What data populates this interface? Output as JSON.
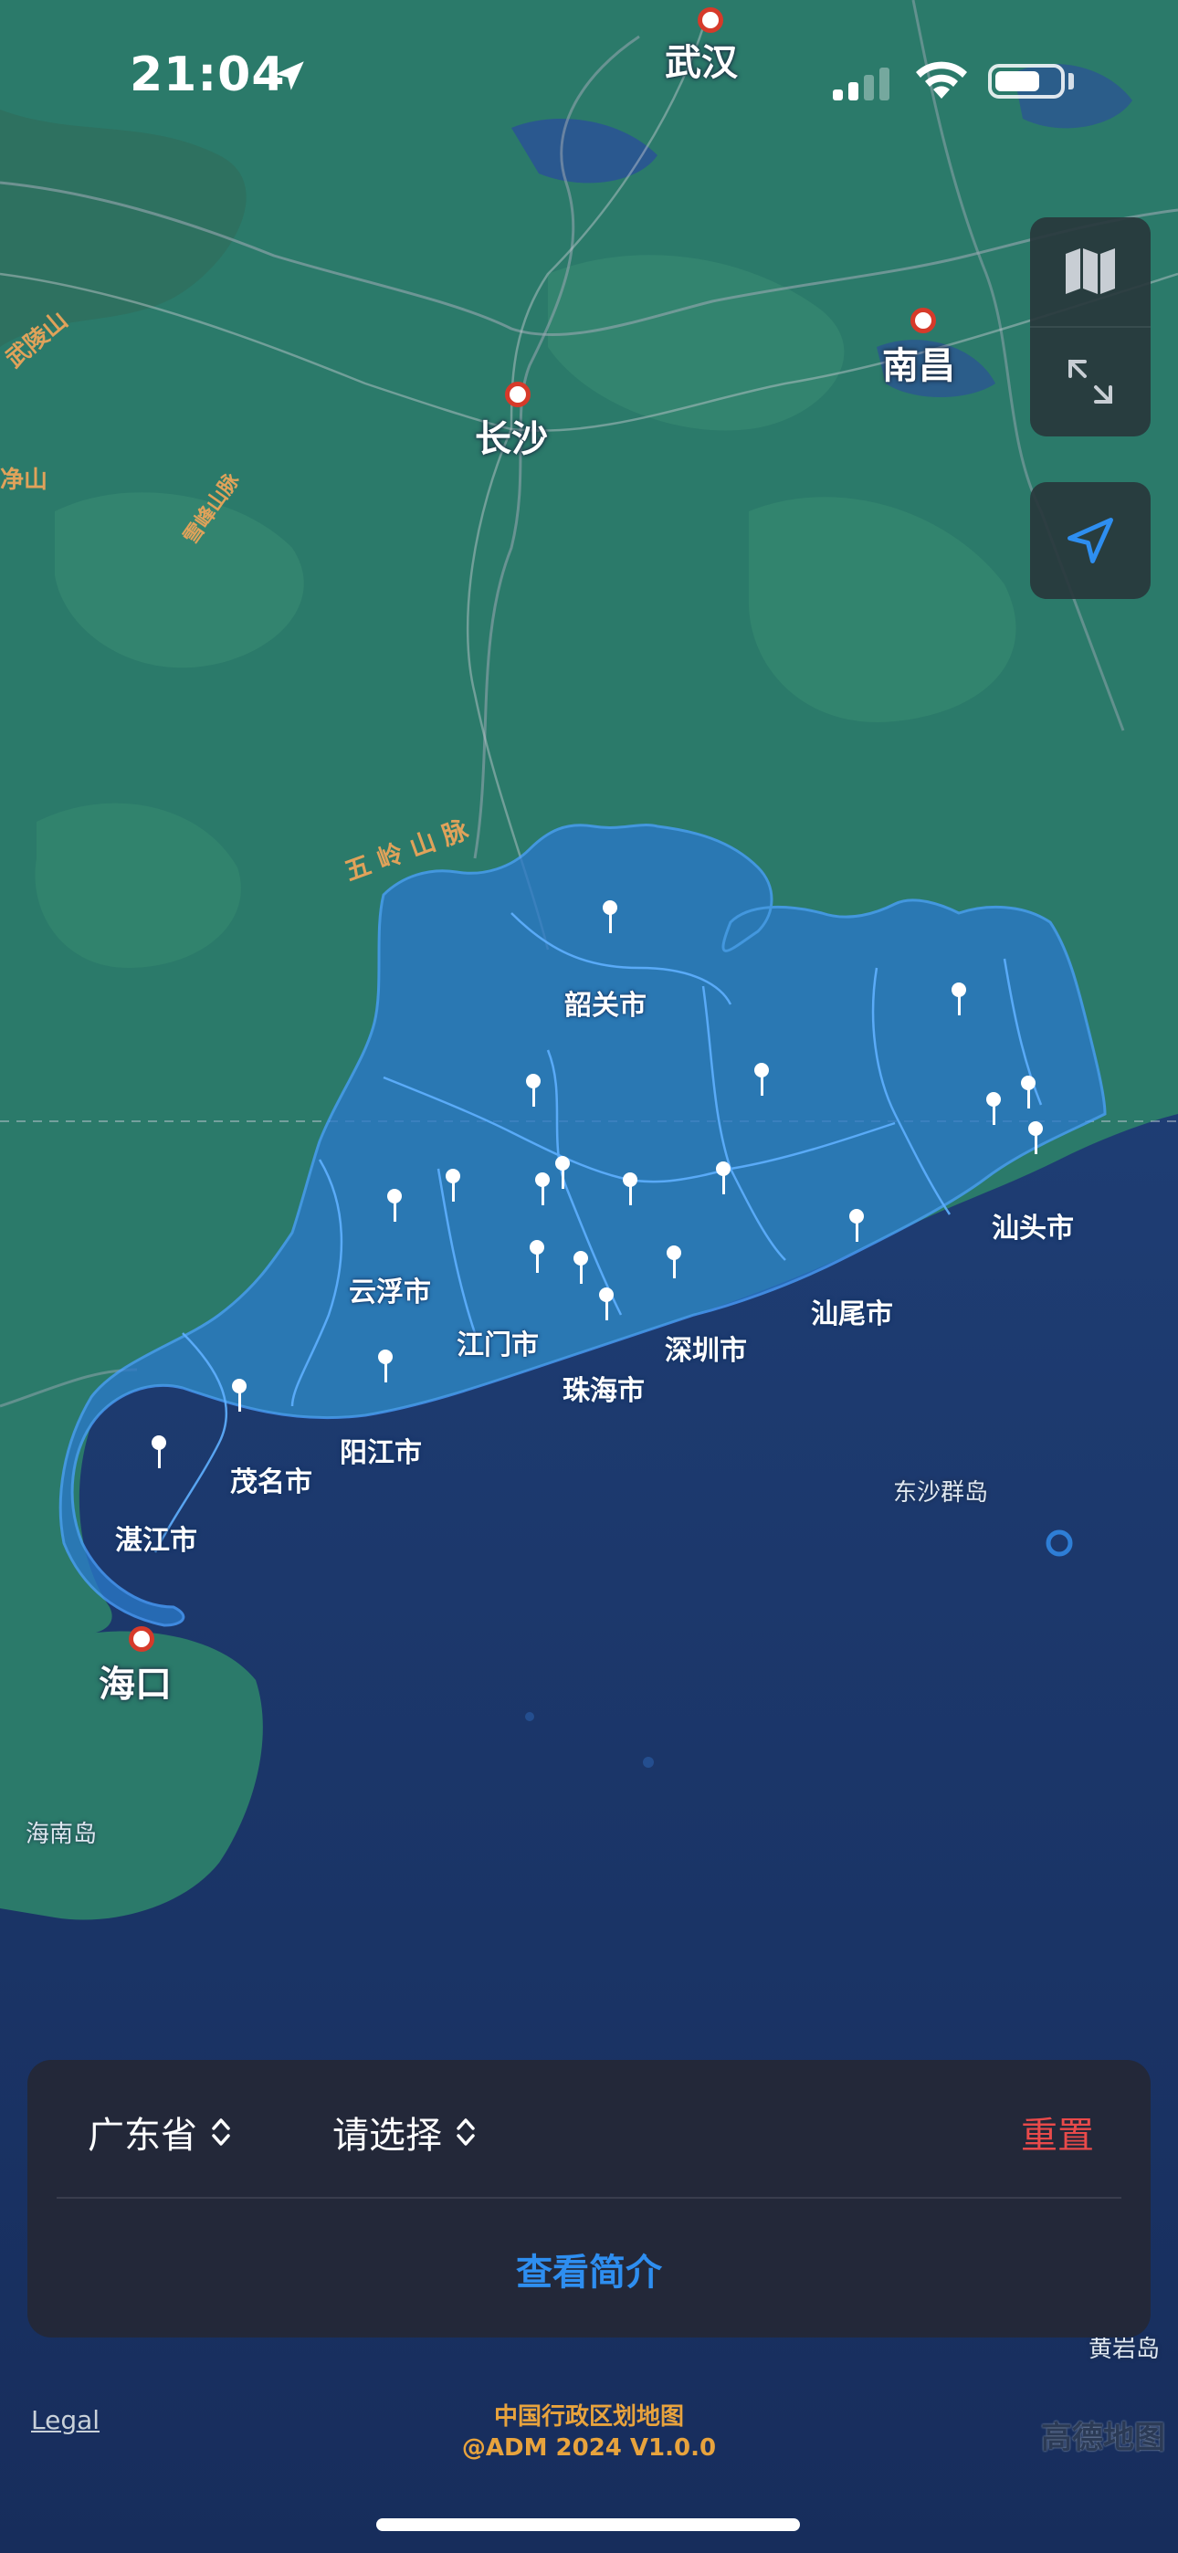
{
  "status_bar": {
    "time": "21:04",
    "battery_level": 0.7
  },
  "map_labels": {
    "wuhan": "武汉",
    "changsha": "长沙",
    "nanchang": "南昌",
    "haikou": "海口",
    "wulingshan": "武陵山",
    "jingshan": "净山",
    "xuefengshan": "雪峰山脉",
    "wulingshanmai": "五 岭 山 脉",
    "dongsha": "东沙群岛",
    "hainan": "海南岛",
    "huangyan": "黄岩岛"
  },
  "prefectures": {
    "shaoguan": "韶关市",
    "yunfu": "云浮市",
    "jiangmen": "江门市",
    "zhuhai": "珠海市",
    "shenzhen": "深圳市",
    "shanwei": "汕尾市",
    "shantou": "汕头市",
    "yangjiang": "阳江市",
    "maoming": "茂名市",
    "zhanjiang": "湛江市"
  },
  "panel": {
    "province": "广东省",
    "city_placeholder": "请选择",
    "reset": "重置",
    "intro": "查看简介"
  },
  "footer": {
    "legal": "Legal",
    "title": "中国行政区划地图",
    "version": "@ADM 2024 V1.0.0",
    "provider": "高德地图"
  },
  "colors": {
    "land": "#2b7a6a",
    "sea": "#1f3f7a",
    "highlight": "#2a78c8",
    "reset": "#e94a4a",
    "intro": "#2e8ef0",
    "footer": "#e8a33d"
  },
  "icons": [
    "location-arrow-icon",
    "signal-icon",
    "wifi-icon",
    "battery-icon",
    "map-icon",
    "expand-icon",
    "locate-icon",
    "sort-chevron-icon",
    "pin-icon"
  ]
}
